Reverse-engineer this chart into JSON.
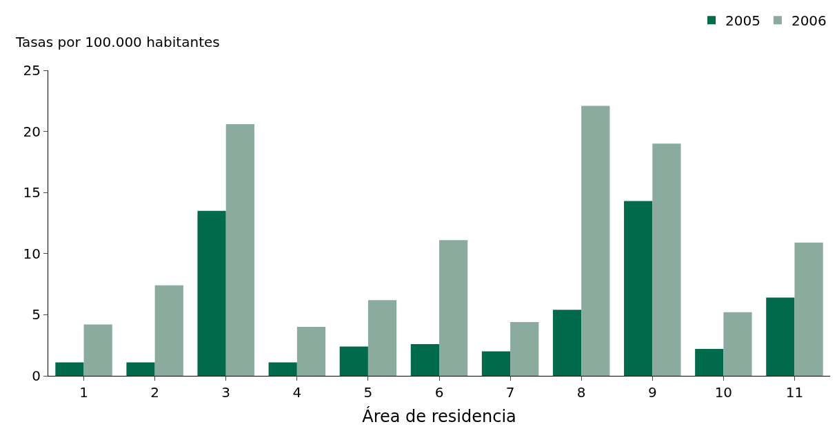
{
  "chart_data": {
    "type": "bar",
    "xlabel": "Área de residencia",
    "ylabel": "Tasas por 100.000 habitantes",
    "categories": [
      "1",
      "2",
      "3",
      "4",
      "5",
      "6",
      "7",
      "8",
      "9",
      "10",
      "11"
    ],
    "series": [
      {
        "name": "2005",
        "color": "#006b4a",
        "values": [
          1.1,
          1.1,
          13.5,
          1.1,
          2.4,
          2.6,
          2.0,
          5.4,
          14.3,
          2.2,
          6.4
        ]
      },
      {
        "name": "2006",
        "color": "#8aab9e",
        "values": [
          4.2,
          7.4,
          20.6,
          4.0,
          6.2,
          11.1,
          4.4,
          22.1,
          19.0,
          5.2,
          10.9
        ]
      }
    ],
    "ylim": [
      0,
      25
    ],
    "yticks": [
      0,
      5,
      10,
      15,
      20,
      25
    ],
    "legend": "top right"
  }
}
